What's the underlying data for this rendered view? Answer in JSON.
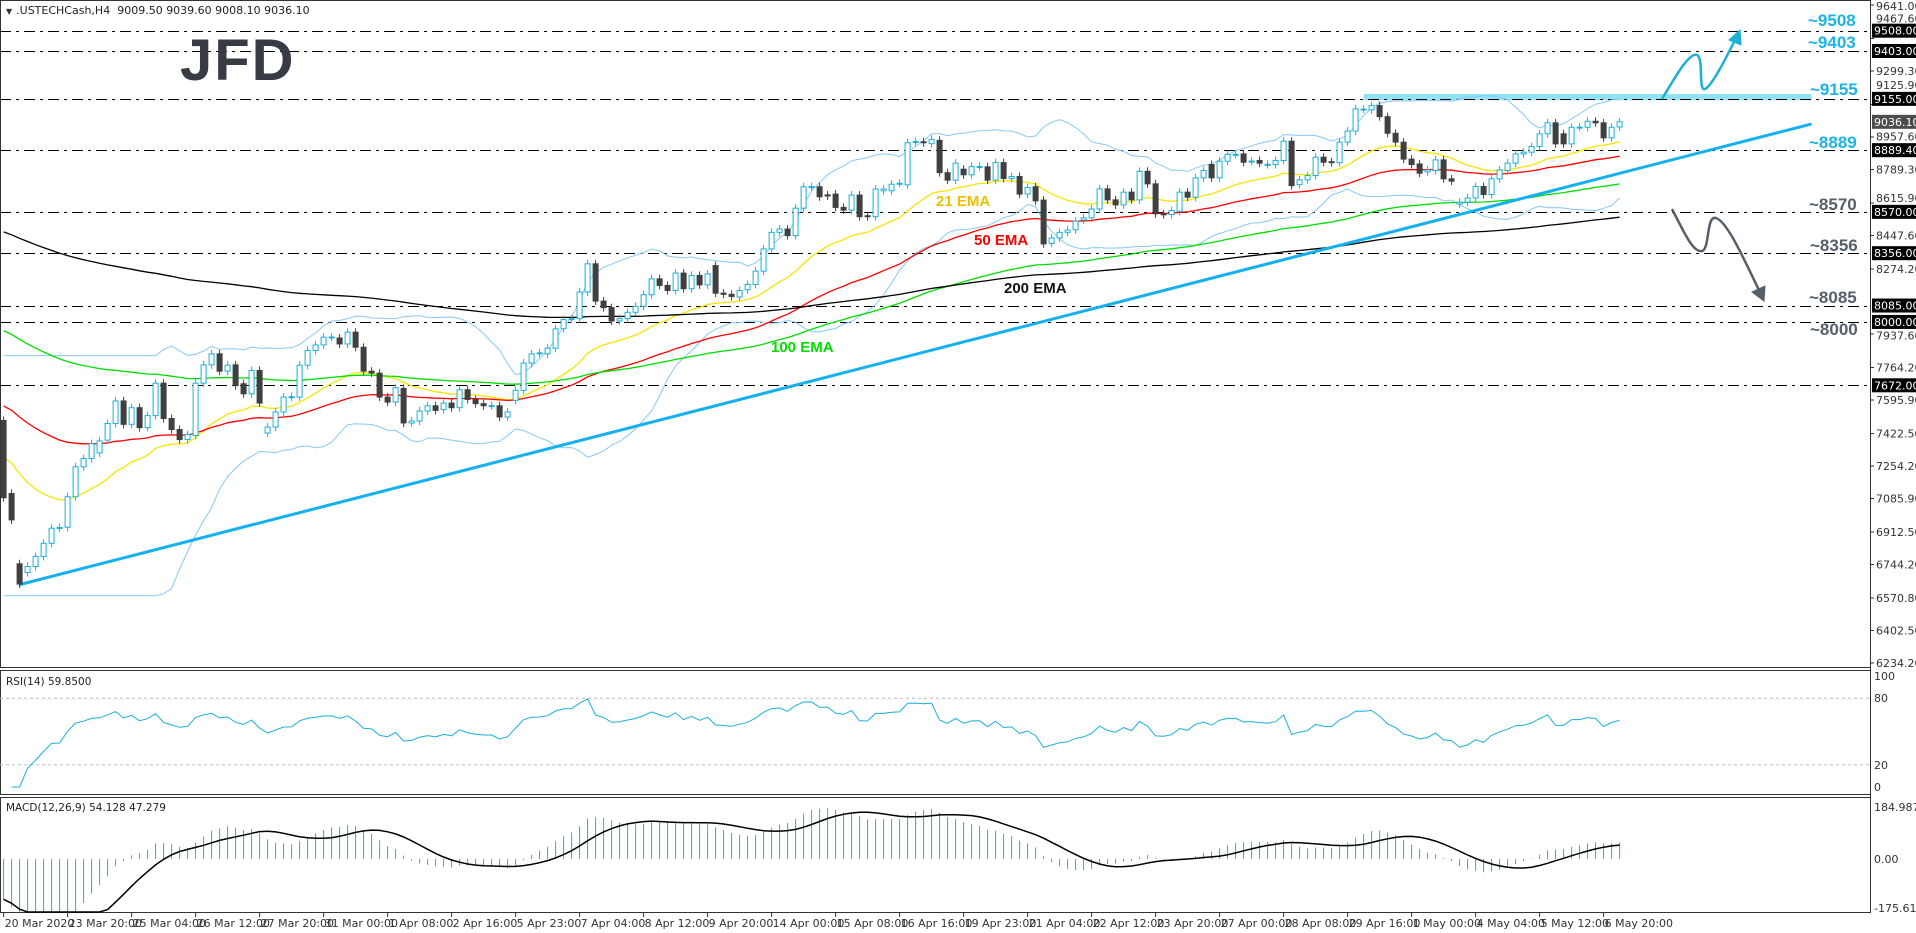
{
  "header": {
    "symbol": ".USTECHCash,H4",
    "ohlc": "9009.50 9039.60 9008.10 9036.10"
  },
  "logo": "JFD",
  "indicators": {
    "rsi_label": "RSI(14) 59.8500",
    "macd_label": "MACD(12,26,9) 54.128 47.279"
  },
  "ema_labels": {
    "ema21": "21 EMA",
    "ema50": "50 EMA",
    "ema100": "100 EMA",
    "ema200": "200 EMA"
  },
  "levels": [
    {
      "price": 9508,
      "axis_label": "9508.00",
      "annotation": "~9508",
      "color": "#1ab4e8"
    },
    {
      "price": 9403,
      "axis_label": "9403.00",
      "annotation": "~9403",
      "color": "#1ab4e8"
    },
    {
      "price": 9155,
      "axis_label": "9155.00",
      "annotation": "~9155",
      "color": "#1ab4e8"
    },
    {
      "price": 8889.4,
      "axis_label": "8889.40",
      "annotation": "~8889",
      "color": "#1ab4e8"
    },
    {
      "price": 8570,
      "axis_label": "8570.00",
      "annotation": "~8570",
      "color": "#56606b"
    },
    {
      "price": 8356,
      "axis_label": "8356.00",
      "annotation": "~8356",
      "color": "#56606b"
    },
    {
      "price": 8085,
      "axis_label": "8085.00",
      "annotation": "~8085",
      "color": "#56606b"
    },
    {
      "price": 8000,
      "axis_label": "8000.00",
      "annotation": "~8000",
      "color": "#56606b"
    },
    {
      "price": 7672,
      "axis_label": "7672.00",
      "annotation": "",
      "color": "#56606b"
    }
  ],
  "chart_data": {
    "type": "candlestick",
    "title": ".USTECHCash,H4",
    "y_range": [
      6234.2,
      9641.0
    ],
    "y_ticks": [
      9641.0,
      9467.6,
      9299.3,
      9125.9,
      8957.6,
      8789.3,
      8615.9,
      8447.6,
      8274.2,
      7937.6,
      7764.2,
      7595.9,
      7422.5,
      7254.2,
      7085.9,
      6912.5,
      6744.2,
      6570.8,
      6402.5,
      6234.2
    ],
    "current_price": {
      "value": 9036.1,
      "label": "9036.10"
    },
    "x_tick_labels": [
      "20 Mar 2020",
      "23 Mar 20:00",
      "25 Mar 04:00",
      "26 Mar 12:00",
      "27 Mar 20:00",
      "31 Mar 00:00",
      "1 Apr 08:00",
      "2 Apr 16:00",
      "5 Apr 23:00",
      "7 Apr 04:00",
      "8 Apr 12:00",
      "9 Apr 20:00",
      "14 Apr 00:00",
      "15 Apr 08:00",
      "16 Apr 16:00",
      "19 Apr 23:00",
      "21 Apr 04:00",
      "22 Apr 12:00",
      "23 Apr 20:00",
      "27 Apr 00:00",
      "28 Apr 08:00",
      "29 Apr 16:00",
      "1 May 00:00",
      "4 May 04:00",
      "5 May 12:00",
      "6 May 20:00"
    ],
    "candles_per_x_tick": 8,
    "candles_open_close": [
      [
        7490,
        7090
      ],
      [
        7112,
        6975
      ],
      [
        6748,
        6643
      ],
      [
        6703,
        6734
      ],
      [
        6734,
        6786
      ],
      [
        6786,
        6854
      ],
      [
        6854,
        6932
      ],
      [
        6932,
        6936
      ],
      [
        6937,
        7095
      ],
      [
        7095,
        7250
      ],
      [
        7250,
        7293
      ],
      [
        7293,
        7370
      ],
      [
        7322,
        7384
      ],
      [
        7388,
        7474
      ],
      [
        7474,
        7591
      ],
      [
        7591,
        7470
      ],
      [
        7470,
        7556
      ],
      [
        7556,
        7453
      ],
      [
        7453,
        7515
      ],
      [
        7515,
        7683
      ],
      [
        7683,
        7500
      ],
      [
        7500,
        7443
      ],
      [
        7443,
        7391
      ],
      [
        7391,
        7417
      ],
      [
        7412,
        7683
      ],
      [
        7683,
        7778
      ],
      [
        7778,
        7835
      ],
      [
        7835,
        7745
      ],
      [
        7745,
        7776
      ],
      [
        7778,
        7670
      ],
      [
        7680,
        7628
      ],
      [
        7628,
        7749
      ],
      [
        7749,
        7580
      ],
      [
        7425,
        7456
      ],
      [
        7456,
        7534
      ],
      [
        7534,
        7611
      ],
      [
        7611,
        7613
      ],
      [
        7611,
        7776
      ],
      [
        7776,
        7852
      ],
      [
        7852,
        7881
      ],
      [
        7881,
        7921
      ],
      [
        7921,
        7922
      ],
      [
        7917,
        7886
      ],
      [
        7886,
        7947
      ],
      [
        7947,
        7869
      ],
      [
        7869,
        7745
      ],
      [
        7745,
        7735
      ],
      [
        7735,
        7611
      ],
      [
        7611,
        7585
      ],
      [
        7585,
        7659
      ],
      [
        7656,
        7477
      ],
      [
        7477,
        7487
      ],
      [
        7487,
        7539
      ],
      [
        7539,
        7566
      ],
      [
        7566,
        7542
      ],
      [
        7546,
        7580
      ],
      [
        7580,
        7556
      ],
      [
        7556,
        7649
      ],
      [
        7649,
        7599
      ],
      [
        7599,
        7577
      ],
      [
        7577,
        7566
      ],
      [
        7566,
        7567
      ],
      [
        7566,
        7508
      ],
      [
        7508,
        7534
      ],
      [
        7594,
        7646
      ],
      [
        7646,
        7787
      ],
      [
        7787,
        7835
      ],
      [
        7838,
        7840
      ],
      [
        7835,
        7864
      ],
      [
        7864,
        7964
      ],
      [
        7965,
        8012
      ],
      [
        8016,
        8017
      ],
      [
        8017,
        8155
      ],
      [
        8155,
        8301
      ],
      [
        8301,
        8108
      ],
      [
        8108,
        8074
      ],
      [
        8074,
        8005
      ],
      [
        8005,
        8017
      ],
      [
        8017,
        8050
      ],
      [
        8050,
        8081
      ],
      [
        8081,
        8141
      ],
      [
        8141,
        8223
      ],
      [
        8223,
        8189
      ],
      [
        8189,
        8163
      ],
      [
        8163,
        8253
      ],
      [
        8253,
        8172
      ],
      [
        8172,
        8241
      ],
      [
        8241,
        8192
      ],
      [
        8192,
        8249
      ],
      [
        8292,
        8149
      ],
      [
        8149,
        8143
      ],
      [
        8143,
        8132
      ],
      [
        8129,
        8163
      ],
      [
        8167,
        8194
      ],
      [
        8194,
        8263
      ],
      [
        8263,
        8378
      ],
      [
        8378,
        8464
      ],
      [
        8464,
        8481
      ],
      [
        8481,
        8447
      ],
      [
        8447,
        8589
      ],
      [
        8589,
        8700
      ],
      [
        8700,
        8701
      ],
      [
        8700,
        8648
      ],
      [
        8658,
        8652
      ],
      [
        8662,
        8593
      ],
      [
        8593,
        8579
      ],
      [
        8579,
        8657
      ],
      [
        8657,
        8545
      ],
      [
        8550,
        8545
      ],
      [
        8545,
        8688
      ],
      [
        8679,
        8688
      ],
      [
        8679,
        8713
      ],
      [
        8717,
        8718
      ],
      [
        8710,
        8928
      ],
      [
        8933,
        8934
      ],
      [
        8933,
        8928
      ],
      [
        8923,
        8945
      ],
      [
        8940,
        8773
      ],
      [
        8773,
        8734
      ],
      [
        8734,
        8822
      ],
      [
        8791,
        8762
      ],
      [
        8762,
        8804
      ],
      [
        8804,
        8805
      ],
      [
        8803,
        8734
      ],
      [
        8734,
        8825
      ],
      [
        8825,
        8743
      ],
      [
        8743,
        8753
      ],
      [
        8753,
        8662
      ],
      [
        8662,
        8696
      ],
      [
        8700,
        8627
      ],
      [
        8631,
        8404
      ],
      [
        8407,
        8435
      ],
      [
        8435,
        8464
      ],
      [
        8464,
        8476
      ],
      [
        8477,
        8522
      ],
      [
        8528,
        8539
      ],
      [
        8539,
        8585
      ],
      [
        8585,
        8689
      ],
      [
        8689,
        8632
      ],
      [
        8632,
        8606
      ],
      [
        8606,
        8672
      ],
      [
        8672,
        8632
      ],
      [
        8632,
        8780
      ],
      [
        8780,
        8715
      ],
      [
        8715,
        8560
      ],
      [
        8560,
        8556
      ],
      [
        8556,
        8577
      ],
      [
        8573,
        8672
      ],
      [
        8672,
        8646
      ],
      [
        8646,
        8746
      ],
      [
        8746,
        8784
      ],
      [
        8815,
        8746
      ],
      [
        8746,
        8832
      ],
      [
        8832,
        8867
      ],
      [
        8867,
        8868
      ],
      [
        8870,
        8827
      ],
      [
        8832,
        8833
      ],
      [
        8836,
        8822
      ],
      [
        8815,
        8816
      ],
      [
        8815,
        8836
      ],
      [
        8836,
        8936
      ],
      [
        8936,
        8706
      ],
      [
        8711,
        8736
      ],
      [
        8736,
        8758
      ],
      [
        8758,
        8853
      ],
      [
        8853,
        8827
      ],
      [
        8830,
        8825
      ],
      [
        8825,
        8931
      ],
      [
        8931,
        8988
      ],
      [
        8988,
        9103
      ],
      [
        9101,
        9102
      ],
      [
        9098,
        9120
      ],
      [
        9120,
        9063
      ],
      [
        9063,
        8977
      ],
      [
        8977,
        8931
      ],
      [
        8931,
        8843
      ],
      [
        8843,
        8815
      ],
      [
        8818,
        8770
      ],
      [
        8777,
        8787
      ],
      [
        8784,
        8839
      ],
      [
        8839,
        8741
      ],
      [
        8741,
        8729
      ],
      [
        8611,
        8620
      ],
      [
        8620,
        8642
      ],
      [
        8642,
        8701
      ],
      [
        8701,
        8660
      ],
      [
        8660,
        8741
      ],
      [
        8741,
        8787
      ],
      [
        8784,
        8822
      ],
      [
        8822,
        8870
      ],
      [
        8870,
        8879
      ],
      [
        8879,
        8908
      ],
      [
        8908,
        8974
      ],
      [
        8974,
        9031
      ],
      [
        9031,
        8922
      ],
      [
        8974,
        8922
      ],
      [
        8922,
        9008
      ],
      [
        9008,
        9009
      ],
      [
        9008,
        9039
      ],
      [
        9039,
        9031
      ],
      [
        9031,
        8953
      ],
      [
        8953,
        9008
      ],
      [
        9009.5,
        9036.1
      ]
    ],
    "indicator_start_values": {
      "ema21": 7320,
      "ema50": 7585,
      "ema100": 7972,
      "ema200": 8480,
      "macd_fast": 7490,
      "macd_slow": 7600
    },
    "ema_periods": [
      21,
      50,
      100,
      200
    ],
    "bollinger": {
      "period": 20,
      "deviations": 2
    },
    "trendline": {
      "start": {
        "candle": 2,
        "price": 6640
      },
      "end": {
        "candle": 226,
        "price": 9025
      }
    },
    "resistance_zone": {
      "start_candle": 170,
      "end_candle": 226,
      "price_low": 9148,
      "price_high": 9180
    },
    "rsi": {
      "period": 14,
      "y_range": [
        0,
        100
      ],
      "y_ticks": [
        100,
        80,
        20,
        0
      ],
      "levels": [
        80,
        20
      ]
    },
    "macd": {
      "fast": 12,
      "slow": 26,
      "signal": 9,
      "y_range": [
        -175.618,
        184.987
      ],
      "y_tick_labels": [
        "184.987",
        "0.00",
        "-175.618"
      ]
    },
    "colors": {
      "bull": "#1ab0d8",
      "bear": "#404040",
      "ema21": "#f5e600",
      "ema50": "#ff0000",
      "ema100": "#00dd00",
      "ema200": "#000000",
      "bollinger": "#87c8f5",
      "trendline": "#15b0f0",
      "zone": "#8fe3f5",
      "rsi": "#1ab0d8",
      "macd_hist": "#1ab0d8",
      "macd_signal": "#000000",
      "bull_arrow": "#1ab0d8",
      "bear_arrow": "#56606b"
    }
  }
}
